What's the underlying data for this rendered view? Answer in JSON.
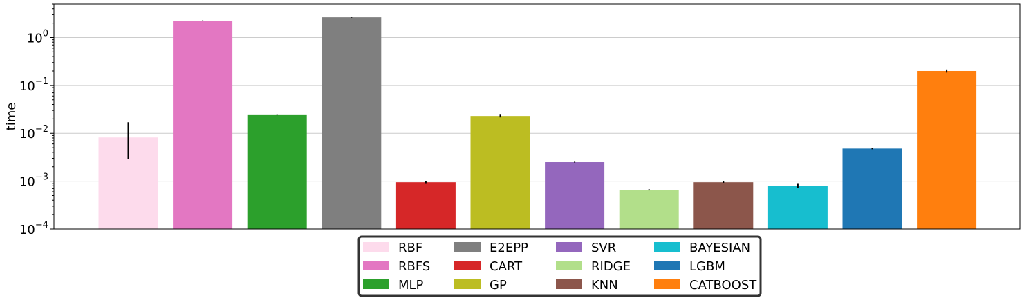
{
  "chart_data": {
    "type": "bar",
    "title": "",
    "xlabel": "",
    "ylabel": "time",
    "yscale": "log",
    "ylim": [
      0.0001,
      5
    ],
    "y_ticks": [
      0.0001,
      0.001,
      0.01,
      0.1,
      1
    ],
    "y_tick_labels": [
      {
        "base": "10",
        "exp": "−4"
      },
      {
        "base": "10",
        "exp": "−3"
      },
      {
        "base": "10",
        "exp": "−2"
      },
      {
        "base": "10",
        "exp": "−1"
      },
      {
        "base": "10",
        "exp": "0"
      }
    ],
    "grid": "horizontal",
    "legend_position": "bottom-center",
    "legend_columns": 4,
    "categories": [
      "RBF",
      "RBFS",
      "MLP",
      "E2EPP",
      "CART",
      "GP",
      "SVR",
      "RIDGE",
      "KNN",
      "BAYESIAN",
      "LGBM",
      "CATBOOST"
    ],
    "values": [
      0.0082,
      2.25,
      0.024,
      2.65,
      0.00095,
      0.023,
      0.0025,
      0.00066,
      0.00095,
      0.0008,
      0.0048,
      0.2
    ],
    "error_low": [
      0.0029,
      2.22,
      0.0238,
      2.6,
      0.00088,
      0.0215,
      0.00245,
      0.00064,
      0.00091,
      0.00072,
      0.00465,
      0.185
    ],
    "error_high": [
      0.017,
      2.28,
      0.0242,
      2.7,
      0.001,
      0.0245,
      0.00255,
      0.00068,
      0.00099,
      0.00088,
      0.00495,
      0.215
    ],
    "colors": [
      "#fddbec",
      "#e377c2",
      "#2ca02c",
      "#7f7f7f",
      "#d62728",
      "#bcbd22",
      "#9467bd",
      "#b2df8a",
      "#8c564b",
      "#17becf",
      "#1f77b4",
      "#ff7f0e"
    ]
  }
}
